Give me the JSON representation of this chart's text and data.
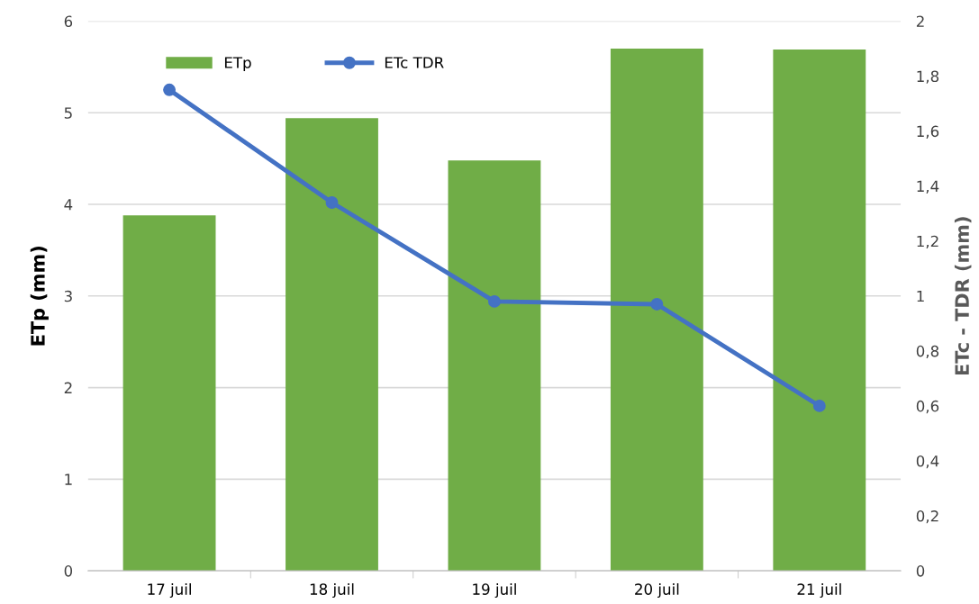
{
  "chart_data": {
    "type": "bar",
    "categories": [
      "17 juil",
      "18 juil",
      "19 juil",
      "20 juil",
      "21 juil"
    ],
    "series": [
      {
        "name": "ETp",
        "color": "#70ad47",
        "values": [
          3.88,
          4.94,
          4.48,
          5.7,
          5.69
        ]
      },
      {
        "name": "ETc TDR",
        "type": "line",
        "axis": "y2",
        "color": "#4472c4",
        "values": [
          1.75,
          1.34,
          0.98,
          0.97,
          0.6
        ],
        "marker": "circle"
      }
    ],
    "ylabel": "ETp (mm)",
    "y2label": "ETc - TDR (mm)",
    "ylim": [
      0,
      6
    ],
    "yticks": [
      0,
      1,
      2,
      3,
      4,
      5,
      6
    ],
    "y2lim": [
      0,
      2
    ],
    "y2ticks": [
      {
        "value": 0,
        "label": "0"
      },
      {
        "value": 0.2,
        "label": "0,2"
      },
      {
        "value": 0.4,
        "label": "0,4"
      },
      {
        "value": 0.6,
        "label": "0,6"
      },
      {
        "value": 0.8,
        "label": "0,8"
      },
      {
        "value": 1,
        "label": "1"
      },
      {
        "value": 1.2,
        "label": "1,2"
      },
      {
        "value": 1.4,
        "label": "1,4"
      },
      {
        "value": 1.6,
        "label": "1,6"
      },
      {
        "value": 1.8,
        "label": "1,8"
      },
      {
        "value": 2,
        "label": "2"
      }
    ],
    "grid": "y",
    "legend": "top left"
  }
}
